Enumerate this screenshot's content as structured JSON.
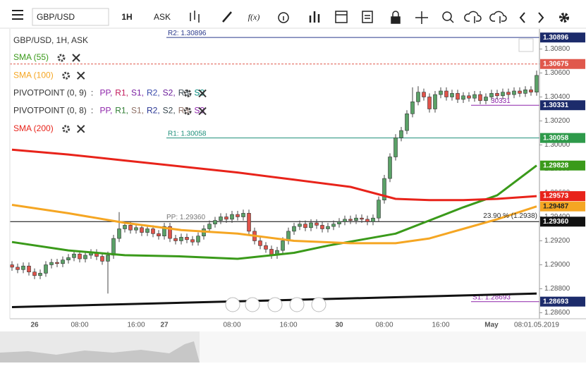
{
  "toolbar": {
    "symbol": "GBP/USD",
    "timeframe": "1H",
    "price": "ASK",
    "formula": "f(x)"
  },
  "chart_data": {
    "type": "candlestick",
    "title": "GBP/USD, 1H, ASK",
    "categories": [
      null,
      null,
      null,
      null,
      "26",
      null,
      null,
      null,
      null,
      null,
      null,
      null,
      "08:00",
      null,
      null,
      null,
      null,
      null,
      null,
      null,
      null,
      null,
      "16:00",
      null,
      null,
      null,
      null,
      "27",
      null,
      null,
      null,
      null,
      null,
      null,
      null,
      null,
      null,
      null,
      null,
      "08:00",
      null,
      null,
      null,
      null,
      null,
      null,
      null,
      null,
      null,
      "16:00",
      null,
      null,
      null,
      null,
      null,
      null,
      null,
      null,
      "30",
      null,
      null,
      null,
      null,
      null,
      null,
      null,
      "08:00",
      null,
      null,
      null,
      null,
      null,
      null,
      null,
      null,
      null,
      "16:00",
      null,
      null,
      null,
      null,
      null,
      null,
      null,
      null,
      "May",
      null,
      null,
      null,
      null,
      null,
      null,
      null,
      "08:01.05.2019"
    ],
    "open": [
      1.29,
      1.2898,
      1.2896,
      1.2899,
      1.2894,
      1.2891,
      1.2893,
      1.29,
      1.2902,
      1.2901,
      1.2904,
      1.2906,
      1.2909,
      1.2905,
      1.2908,
      1.291,
      1.2907,
      1.2903,
      1.2908,
      1.2922,
      1.293,
      1.2933,
      1.2929,
      1.2931,
      1.2927,
      1.293,
      1.2926,
      1.2924,
      1.2932,
      1.2922,
      1.292,
      1.2923,
      1.2921,
      1.2919,
      1.2924,
      1.293,
      1.2934,
      1.2937,
      1.294,
      1.2938,
      1.2942,
      1.294,
      1.2943,
      1.2928,
      1.292,
      1.2916,
      1.2913,
      1.2908,
      1.2912,
      1.292,
      1.2928,
      1.2932,
      1.2934,
      1.2931,
      1.2935,
      1.2933,
      1.293,
      1.2932,
      1.2934,
      1.2936,
      1.2938,
      1.2937,
      1.2939,
      1.2938,
      1.2936,
      1.2939,
      1.2954,
      1.2972,
      1.299,
      1.3006,
      1.3012,
      1.3026,
      1.3036,
      1.3044,
      1.304,
      1.303,
      1.3042,
      1.3045,
      1.304,
      1.3043,
      1.3038,
      1.3041,
      1.3039,
      1.3042,
      1.3037,
      1.304,
      1.3043,
      1.3041,
      1.3044,
      1.3042,
      1.3045,
      1.3043,
      1.3046,
      1.3044
    ],
    "high": [
      1.2903,
      1.2901,
      1.2902,
      1.2902,
      1.2897,
      1.2896,
      1.2903,
      1.2905,
      1.2905,
      1.2907,
      1.2909,
      1.2912,
      1.2912,
      1.2911,
      1.2913,
      1.2913,
      1.291,
      1.2911,
      1.2925,
      1.2944,
      1.2936,
      1.2936,
      1.2934,
      1.2934,
      1.2933,
      1.2933,
      1.2929,
      1.2935,
      1.2935,
      1.2925,
      1.2926,
      1.2926,
      1.2924,
      1.2927,
      1.2933,
      1.2937,
      1.294,
      1.2943,
      1.2943,
      1.2945,
      1.2945,
      1.2946,
      1.2946,
      1.2931,
      1.2923,
      1.2919,
      1.2916,
      1.2915,
      1.2923,
      1.2931,
      1.2935,
      1.2937,
      1.2937,
      1.2938,
      1.2938,
      1.2936,
      1.2935,
      1.2937,
      1.2939,
      1.2941,
      1.2941,
      1.2942,
      1.2942,
      1.2941,
      1.2942,
      1.2957,
      1.2975,
      1.2993,
      1.3009,
      1.3015,
      1.3029,
      1.3048,
      1.3049,
      1.3047,
      1.3043,
      1.3045,
      1.3048,
      1.3048,
      1.3046,
      1.3046,
      1.3044,
      1.3044,
      1.3045,
      1.3045,
      1.3043,
      1.3046,
      1.3046,
      1.3047,
      1.3047,
      1.3048,
      1.3048,
      1.3049,
      1.3049,
      1.3062
    ],
    "low": [
      1.2895,
      1.2893,
      1.2893,
      1.2891,
      1.2888,
      1.2888,
      1.289,
      1.2897,
      1.2898,
      1.2898,
      1.2901,
      1.2903,
      1.2902,
      1.2902,
      1.2905,
      1.2904,
      1.29,
      1.2876,
      1.2905,
      1.2919,
      1.2927,
      1.2926,
      1.2926,
      1.2924,
      1.2924,
      1.2923,
      1.2921,
      1.2921,
      1.2919,
      1.2917,
      1.2917,
      1.2918,
      1.2916,
      1.2916,
      1.2921,
      1.2927,
      1.2931,
      1.2934,
      1.2935,
      1.2935,
      1.2937,
      1.2937,
      1.2925,
      1.2917,
      1.2913,
      1.291,
      1.2905,
      1.2905,
      1.2909,
      1.2917,
      1.2925,
      1.2929,
      1.2928,
      1.2928,
      1.293,
      1.2927,
      1.2927,
      1.2929,
      1.2931,
      1.2933,
      1.2934,
      1.2934,
      1.2935,
      1.2933,
      1.2933,
      1.2936,
      1.2951,
      1.2969,
      1.2987,
      1.3003,
      1.3009,
      1.3023,
      1.3033,
      1.3037,
      1.3027,
      1.3027,
      1.3039,
      1.3037,
      1.3037,
      1.3035,
      1.3035,
      1.3036,
      1.3036,
      1.3034,
      1.3034,
      1.3037,
      1.3038,
      1.3038,
      1.3039,
      1.3039,
      1.304,
      1.304,
      1.3041,
      1.3041
    ],
    "close": [
      1.2898,
      1.2896,
      1.2899,
      1.2894,
      1.2891,
      1.2893,
      1.29,
      1.2902,
      1.2901,
      1.2904,
      1.2906,
      1.2909,
      1.2905,
      1.2908,
      1.291,
      1.2907,
      1.2903,
      1.2908,
      1.2922,
      1.293,
      1.2933,
      1.2929,
      1.2931,
      1.2927,
      1.293,
      1.2926,
      1.2924,
      1.2932,
      1.2922,
      1.292,
      1.2923,
      1.2921,
      1.2919,
      1.2924,
      1.293,
      1.2934,
      1.2937,
      1.294,
      1.2938,
      1.2942,
      1.294,
      1.2943,
      1.2928,
      1.292,
      1.2916,
      1.2913,
      1.2908,
      1.2912,
      1.292,
      1.2928,
      1.2932,
      1.2934,
      1.2931,
      1.2935,
      1.2933,
      1.293,
      1.2932,
      1.2934,
      1.2936,
      1.2938,
      1.2937,
      1.2939,
      1.2938,
      1.2936,
      1.2939,
      1.2954,
      1.2972,
      1.299,
      1.3006,
      1.3012,
      1.3026,
      1.3036,
      1.3044,
      1.304,
      1.303,
      1.3042,
      1.3045,
      1.304,
      1.3043,
      1.3038,
      1.3041,
      1.3039,
      1.3042,
      1.3037,
      1.304,
      1.3043,
      1.3041,
      1.3044,
      1.3042,
      1.3045,
      1.3043,
      1.3046,
      1.3044,
      1.3058
    ],
    "up_color": "#5aa167",
    "down_color": "#e0534a",
    "series": [
      {
        "name": "SMA (55)",
        "color": "#3a9a1a",
        "x": [
          0,
          10,
          20,
          30,
          40,
          50,
          56,
          62,
          68,
          74,
          80,
          86,
          93
        ],
        "values": [
          1.2919,
          1.2912,
          1.2908,
          1.2907,
          1.2905,
          1.291,
          1.2916,
          1.2921,
          1.2926,
          1.2937,
          1.2948,
          1.2958,
          1.29828
        ],
        "end_label": "1.29828"
      },
      {
        "name": "SMA (100)",
        "color": "#f5a623",
        "x": [
          0,
          10,
          20,
          30,
          40,
          50,
          60,
          68,
          74,
          80,
          86,
          93
        ],
        "values": [
          1.295,
          1.2943,
          1.2935,
          1.2929,
          1.2926,
          1.292,
          1.2918,
          1.2918,
          1.2922,
          1.293,
          1.2938,
          1.29487
        ],
        "end_label": "1.29487"
      },
      {
        "name": "SMA (200)",
        "color": "#e8231a",
        "x": [
          0,
          10,
          20,
          30,
          40,
          50,
          60,
          64,
          68,
          74,
          80,
          86,
          93
        ],
        "values": [
          1.2996,
          1.2992,
          1.2987,
          1.2982,
          1.2977,
          1.2971,
          1.2965,
          1.296,
          1.2955,
          1.2954,
          1.2954,
          1.2955,
          1.29573
        ],
        "end_label": "1.29573"
      },
      {
        "color": "#111111",
        "x": [
          0,
          93
        ],
        "values": [
          1.28647,
          1.2876
        ]
      }
    ],
    "pivot_legends": [
      {
        "name": "PIVOTPOINT (0, 9)",
        "parts": [
          {
            "text": ": ",
            "color": "#333"
          },
          {
            "text": "PP,",
            "color": "#8e24aa"
          },
          {
            "text": "R1,",
            "color": "#c2185b"
          },
          {
            "text": "S1,",
            "color": "#7b1fa2"
          },
          {
            "text": "R2,",
            "color": "#3949ab"
          },
          {
            "text": "S2,",
            "color": "#6a1b9a"
          },
          {
            "text": "R3,",
            "color": "#37474f"
          },
          {
            "text": "S3",
            "color": "#00897b"
          }
        ]
      },
      {
        "name": "PIVOTPOINT (0, 8)",
        "parts": [
          {
            "text": ": ",
            "color": "#333"
          },
          {
            "text": "PP,",
            "color": "#8e24aa"
          },
          {
            "text": "R1,",
            "color": "#2e7d32"
          },
          {
            "text": "S1,",
            "color": "#8d6e63"
          },
          {
            "text": "R2,",
            "color": "#283593"
          },
          {
            "text": "S2,",
            "color": "#37474f"
          },
          {
            "text": "R3,",
            "color": "#8d6e63"
          },
          {
            "text": "S3",
            "color": "#8e24aa"
          }
        ]
      }
    ],
    "levels": [
      {
        "value": 1.30896,
        "tag": "1.30896",
        "label": "R2: 1.30896",
        "color": "#2b3a8c",
        "badge": "#1c2b6b"
      },
      {
        "value": 1.30675,
        "tag": "1.30675",
        "color": "#e0584c",
        "badge": "#e0584c"
      },
      {
        "value": 1.30331,
        "tag": "1.30331",
        "label": "30331",
        "color": "#8e24aa",
        "badge": "#1c2b6b"
      },
      {
        "value": 1.30058,
        "tag": "1.30058",
        "label": "R1: 1.30058",
        "color": "#1e8f7a",
        "badge": "#2e9a4a"
      },
      {
        "value": 1.2936,
        "tag": "1.29360",
        "label": "PP: 1.29360",
        "color": "#000000",
        "badge": "#111111"
      },
      {
        "value": 1.28693,
        "tag": "1.28693",
        "label": "S1: 1.28693",
        "color": "#8e24aa",
        "badge": "#1c2b6b"
      }
    ],
    "annotation": "23.90 % (1.2938)",
    "ylim": [
      1.2855,
      1.3095
    ],
    "yticks": [
      {
        "value": 1.286,
        "label": "1.28600"
      },
      {
        "value": 1.288,
        "label": "1.28800"
      },
      {
        "value": 1.29,
        "label": "1.29000"
      },
      {
        "value": 1.292,
        "label": "1.29200"
      },
      {
        "value": 1.294,
        "label": "1.29400"
      },
      {
        "value": 1.296,
        "label": "1.29600"
      },
      {
        "value": 1.298,
        "label": "1.29800"
      },
      {
        "value": 1.3,
        "label": "1.30000"
      },
      {
        "value": 1.302,
        "label": "1.30200"
      },
      {
        "value": 1.304,
        "label": "1.30400"
      },
      {
        "value": 1.306,
        "label": "1.30600"
      },
      {
        "value": 1.308,
        "label": "1.30800"
      }
    ]
  }
}
